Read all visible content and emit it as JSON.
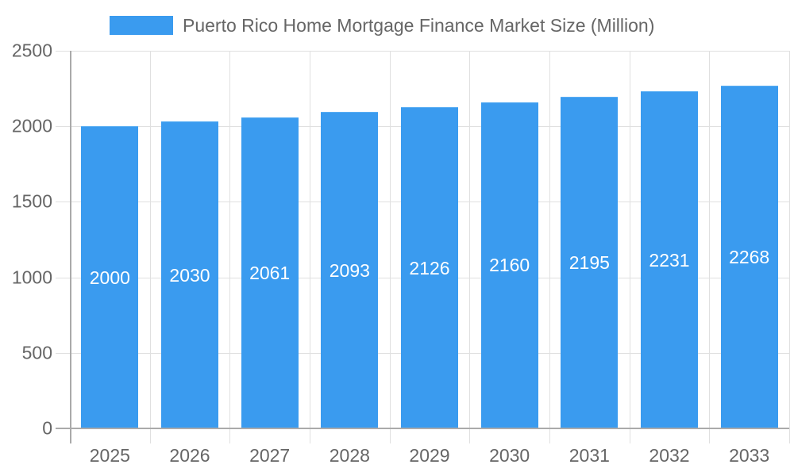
{
  "legend": {
    "label": "Puerto Rico Home Mortgage Finance Market Size (Million)",
    "color": "#3a9bef"
  },
  "y_ticks": [
    "0",
    "500",
    "1000",
    "1500",
    "2000",
    "2500"
  ],
  "x_ticks": [
    "2025",
    "2026",
    "2027",
    "2028",
    "2029",
    "2030",
    "2031",
    "2032",
    "2033"
  ],
  "bar_labels": [
    "2000",
    "2030",
    "2061",
    "2093",
    "2126",
    "2160",
    "2195",
    "2231",
    "2268"
  ],
  "chart_data": {
    "type": "bar",
    "title": "",
    "categories": [
      "2025",
      "2026",
      "2027",
      "2028",
      "2029",
      "2030",
      "2031",
      "2032",
      "2033"
    ],
    "series": [
      {
        "name": "Puerto Rico Home Mortgage Finance Market Size (Million)",
        "values": [
          2000,
          2030,
          2061,
          2093,
          2126,
          2160,
          2195,
          2231,
          2268
        ],
        "color": "#3a9bef"
      }
    ],
    "xlabel": "",
    "ylabel": "",
    "ylim": [
      0,
      2500
    ],
    "yticks": [
      0,
      500,
      1000,
      1500,
      2000,
      2500
    ],
    "grid": true,
    "legend_position": "top",
    "data_labels": true
  }
}
